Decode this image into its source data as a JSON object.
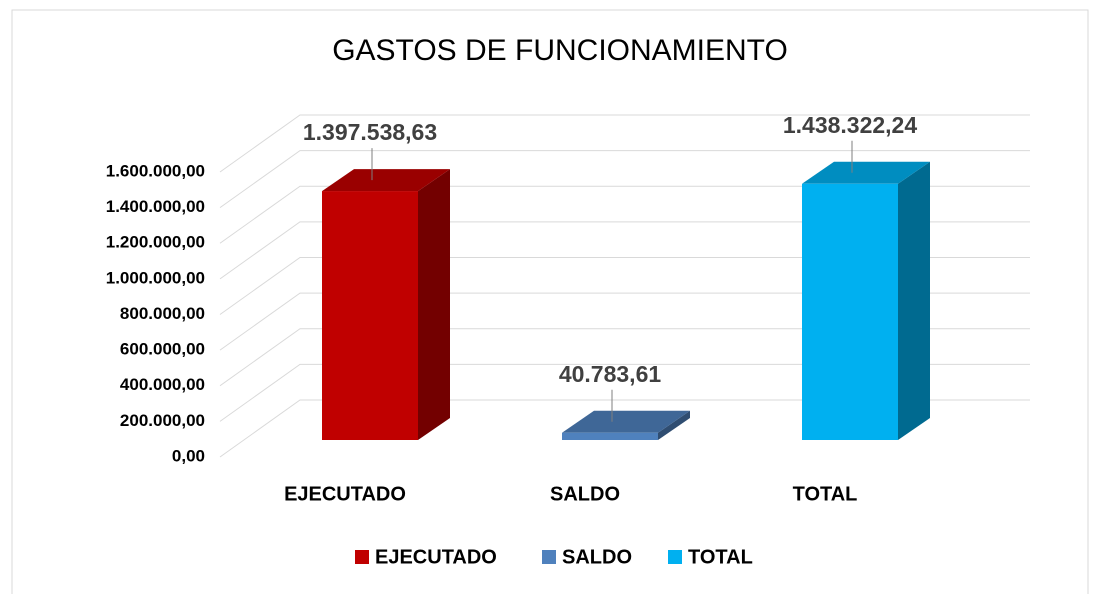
{
  "chart_data": {
    "type": "bar3d",
    "title": "GASTOS DE FUNCIONAMIENTO",
    "categories": [
      "EJECUTADO",
      "SALDO",
      "TOTAL"
    ],
    "values": [
      1397538.63,
      40783.61,
      1438322.24
    ],
    "value_labels": [
      "1.397.538,63",
      "40.783,61",
      "1.438.322,24"
    ],
    "colors": [
      "#c00000",
      "#4f81bd",
      "#00b0f0"
    ],
    "ylim": [
      0,
      1600000
    ],
    "yticks": [
      {
        "value": 0,
        "label": "0,00"
      },
      {
        "value": 200000,
        "label": "200.000,00"
      },
      {
        "value": 400000,
        "label": "400.000,00"
      },
      {
        "value": 600000,
        "label": "600.000,00"
      },
      {
        "value": 800000,
        "label": "800.000,00"
      },
      {
        "value": 1000000,
        "label": "1.000.000,00"
      },
      {
        "value": 1200000,
        "label": "1.200.000,00"
      },
      {
        "value": 1400000,
        "label": "1.400.000,00"
      },
      {
        "value": 1600000,
        "label": "1.600.000,00"
      }
    ],
    "grid": true,
    "legend": "bottom"
  }
}
